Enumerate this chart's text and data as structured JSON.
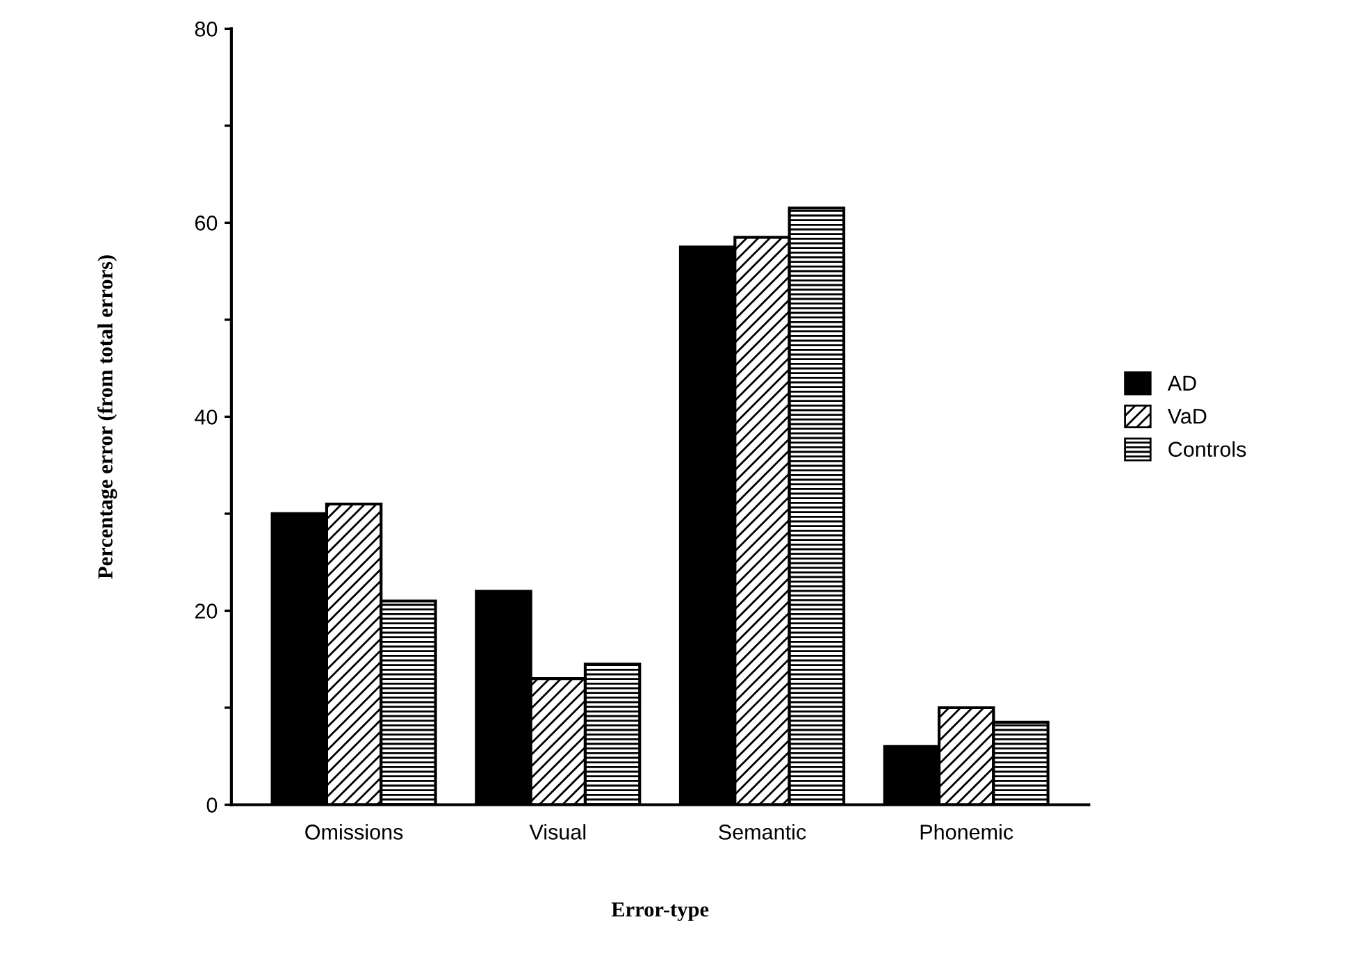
{
  "chart_data": {
    "type": "bar",
    "xlabel": "Error-type",
    "ylabel": "Percentage error (from total errors)",
    "categories": [
      "Omissions",
      "Visual",
      "Semantic",
      "Phonemic"
    ],
    "series": [
      {
        "name": "AD",
        "color": "#000000",
        "values": [
          30,
          22,
          57.5,
          6
        ]
      },
      {
        "name": "VaD",
        "color": "#000000",
        "values": [
          31,
          13,
          58.5,
          10
        ]
      },
      {
        "name": "Controls",
        "color": "#000000",
        "values": [
          21,
          14.5,
          61.5,
          8.5
        ]
      }
    ],
    "ylim": [
      0,
      80
    ],
    "yticks": [
      0,
      {
        "value": 10,
        "label": null
      },
      20,
      {
        "value": 30,
        "label": null
      },
      40,
      {
        "value": 50,
        "label": null
      },
      60,
      {
        "value": 70,
        "label": null
      },
      80
    ],
    "grid": false,
    "legend": "right"
  }
}
